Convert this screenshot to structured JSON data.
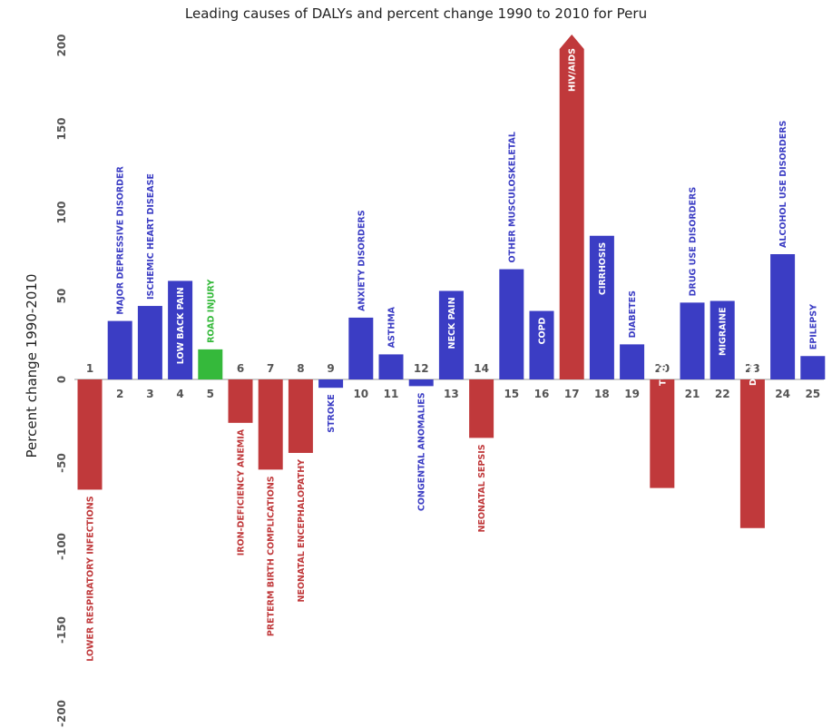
{
  "chart_data": {
    "type": "bar",
    "title": "Leading causes of DALYs and percent change 1990 to 2010 for Peru",
    "ylabel": "Percent change 1990-2010",
    "ylim": [
      -200,
      200
    ],
    "yticks": [
      -200,
      -150,
      -100,
      -50,
      0,
      50,
      100,
      150,
      200
    ],
    "grid": false,
    "colors": {
      "communicable": "#c0393b",
      "non_communicable": "#3b3dc4",
      "injury": "#35b93b"
    },
    "bars": [
      {
        "rank": "1",
        "label": "LOWER RESPIRATORY INFECTIONS",
        "value": -66,
        "group": "communicable"
      },
      {
        "rank": "2",
        "label": "MAJOR DEPRESSIVE DISORDER",
        "value": 35,
        "group": "non_communicable"
      },
      {
        "rank": "3",
        "label": "ISCHEMIC HEART DISEASE",
        "value": 44,
        "group": "non_communicable"
      },
      {
        "rank": "4",
        "label": "LOW BACK PAIN",
        "value": 59,
        "group": "non_communicable"
      },
      {
        "rank": "5",
        "label": "ROAD INJURY",
        "value": 18,
        "group": "injury"
      },
      {
        "rank": "6",
        "label": "IRON-DEFICIENCY ANEMIA",
        "value": -26,
        "group": "communicable"
      },
      {
        "rank": "7",
        "label": "PRETERM BIRTH COMPLICATIONS",
        "value": -54,
        "group": "communicable"
      },
      {
        "rank": "8",
        "label": "NEONATAL ENCEPHALOPATHY",
        "value": -44,
        "group": "communicable"
      },
      {
        "rank": "9",
        "label": "STROKE",
        "value": -5,
        "group": "non_communicable"
      },
      {
        "rank": "10",
        "label": "ANXIETY DISORDERS",
        "value": 37,
        "group": "non_communicable"
      },
      {
        "rank": "11",
        "label": "ASTHMA",
        "value": 15,
        "group": "non_communicable"
      },
      {
        "rank": "12",
        "label": "CONGENTAL ANOMALIES",
        "value": -4,
        "group": "non_communicable"
      },
      {
        "rank": "13",
        "label": "NECK PAIN",
        "value": 53,
        "group": "non_communicable"
      },
      {
        "rank": "14",
        "label": "NEONATAL SEPSIS",
        "value": -35,
        "group": "communicable"
      },
      {
        "rank": "15",
        "label": "OTHER MUSCULOSKELETAL",
        "value": 66,
        "group": "non_communicable"
      },
      {
        "rank": "16",
        "label": "COPD",
        "value": 41,
        "group": "non_communicable"
      },
      {
        "rank": "17",
        "label": "HIV/AIDS",
        "value": 205,
        "group": "communicable",
        "clipped": true
      },
      {
        "rank": "18",
        "label": "CIRRHOSIS",
        "value": 86,
        "group": "non_communicable"
      },
      {
        "rank": "19",
        "label": "DIABETES",
        "value": 21,
        "group": "non_communicable"
      },
      {
        "rank": "20",
        "label": "TUBERCULOSIS",
        "value": -65,
        "group": "communicable"
      },
      {
        "rank": "21",
        "label": "DRUG USE DISORDERS",
        "value": 46,
        "group": "non_communicable"
      },
      {
        "rank": "22",
        "label": "MIGRAINE",
        "value": 47,
        "group": "non_communicable"
      },
      {
        "rank": "23",
        "label": "DIARRHEAL DISEASES",
        "value": -89,
        "group": "communicable"
      },
      {
        "rank": "24",
        "label": "ALCOHOL USE DISORDERS",
        "value": 75,
        "group": "non_communicable"
      },
      {
        "rank": "25",
        "label": "EPILEPSY",
        "value": 14,
        "group": "non_communicable"
      }
    ]
  }
}
